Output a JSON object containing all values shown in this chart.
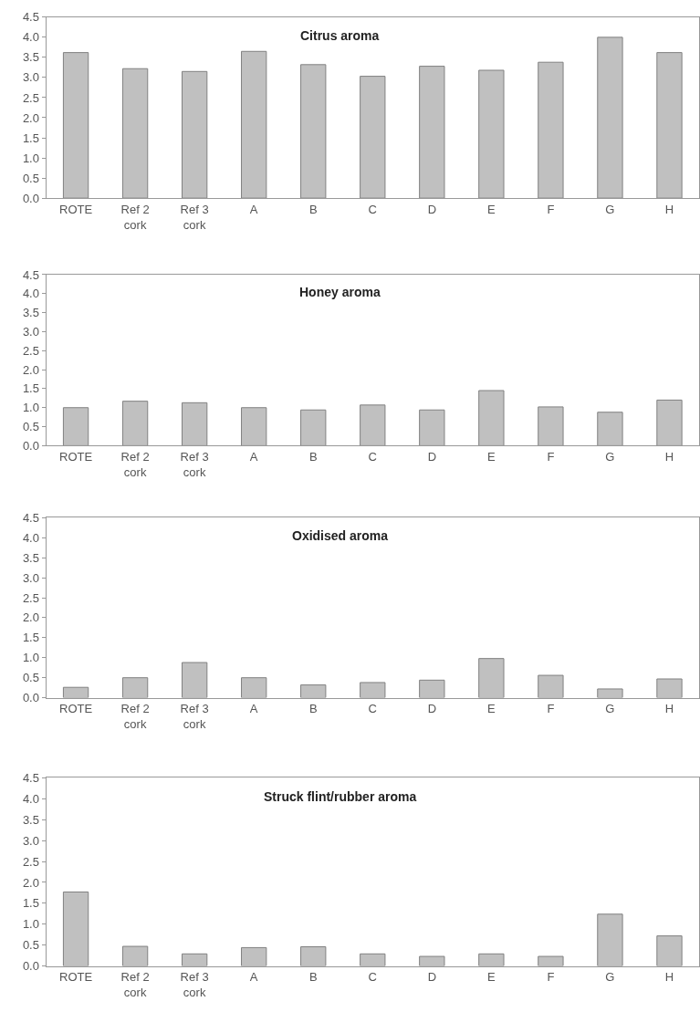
{
  "chart_data": [
    {
      "type": "bar",
      "title": "Citrus aroma",
      "categories": [
        "ROTE",
        "Ref 2\ncork",
        "Ref 3\ncork",
        "A",
        "B",
        "C",
        "D",
        "E",
        "F",
        "G",
        "H"
      ],
      "color": "#c0c0c0",
      "values": [
        3.62,
        3.22,
        3.15,
        3.65,
        3.32,
        3.03,
        3.28,
        3.18,
        3.38,
        4.0,
        3.62
      ],
      "ylim": [
        0,
        4.5
      ],
      "yticks": [
        {
          "value": 0,
          "label": "0.0"
        },
        0.5,
        {
          "value": 1,
          "label": "1.0"
        },
        1.5,
        {
          "value": 2,
          "label": "2.0"
        },
        2.5,
        {
          "value": 3,
          "label": "3.0"
        },
        3.5,
        {
          "value": 4,
          "label": "4.0"
        },
        4.5
      ]
    },
    {
      "type": "bar",
      "title": "Honey aroma",
      "categories": [
        "ROTE",
        "Ref 2\ncork",
        "Ref 3\ncork",
        "A",
        "B",
        "C",
        "D",
        "E",
        "F",
        "G",
        "H"
      ],
      "color": "#c0c0c0",
      "values": [
        1.0,
        1.17,
        1.13,
        1.0,
        0.94,
        1.07,
        0.94,
        1.45,
        1.02,
        0.88,
        1.2
      ],
      "ylim": [
        0,
        4.5
      ],
      "yticks": [
        {
          "value": 0,
          "label": "0.0"
        },
        0.5,
        {
          "value": 1,
          "label": "1.0"
        },
        1.5,
        {
          "value": 2,
          "label": "2.0"
        },
        2.5,
        {
          "value": 3,
          "label": "3.0"
        },
        3.5,
        {
          "value": 4,
          "label": "4.0"
        },
        4.5
      ]
    },
    {
      "type": "bar",
      "title": "Oxidised aroma",
      "categories": [
        "ROTE",
        "Ref 2\ncork",
        "Ref 3\ncork",
        "A",
        "B",
        "C",
        "D",
        "E",
        "F",
        "G",
        "H"
      ],
      "color": "#c0c0c0",
      "values": [
        0.26,
        0.5,
        0.88,
        0.5,
        0.32,
        0.38,
        0.44,
        0.98,
        0.56,
        0.22,
        0.47
      ],
      "ylim": [
        0,
        4.5
      ],
      "yticks": [
        {
          "value": 0,
          "label": "0.0"
        },
        0.5,
        {
          "value": 1,
          "label": "1.0"
        },
        1.5,
        {
          "value": 2,
          "label": "2.0"
        },
        2.5,
        {
          "value": 3,
          "label": "3.0"
        },
        3.5,
        {
          "value": 4,
          "label": "4.0"
        },
        4.5
      ]
    },
    {
      "type": "bar",
      "title": "Struck flint/rubber aroma",
      "categories": [
        "ROTE",
        "Ref 2\ncork",
        "Ref 3\ncork",
        "A",
        "B",
        "C",
        "D",
        "E",
        "F",
        "G",
        "H"
      ],
      "color": "#c0c0c0",
      "values": [
        1.77,
        0.47,
        0.29,
        0.44,
        0.46,
        0.29,
        0.23,
        0.29,
        0.23,
        1.24,
        0.72
      ],
      "ylim": [
        0,
        4.5
      ],
      "yticks": [
        {
          "value": 0,
          "label": "0.0"
        },
        0.5,
        {
          "value": 1,
          "label": "1.0"
        },
        1.5,
        {
          "value": 2,
          "label": "2.0"
        },
        2.5,
        {
          "value": 3,
          "label": "3.0"
        },
        3.5,
        {
          "value": 4,
          "label": "4.0"
        },
        4.5
      ]
    }
  ]
}
